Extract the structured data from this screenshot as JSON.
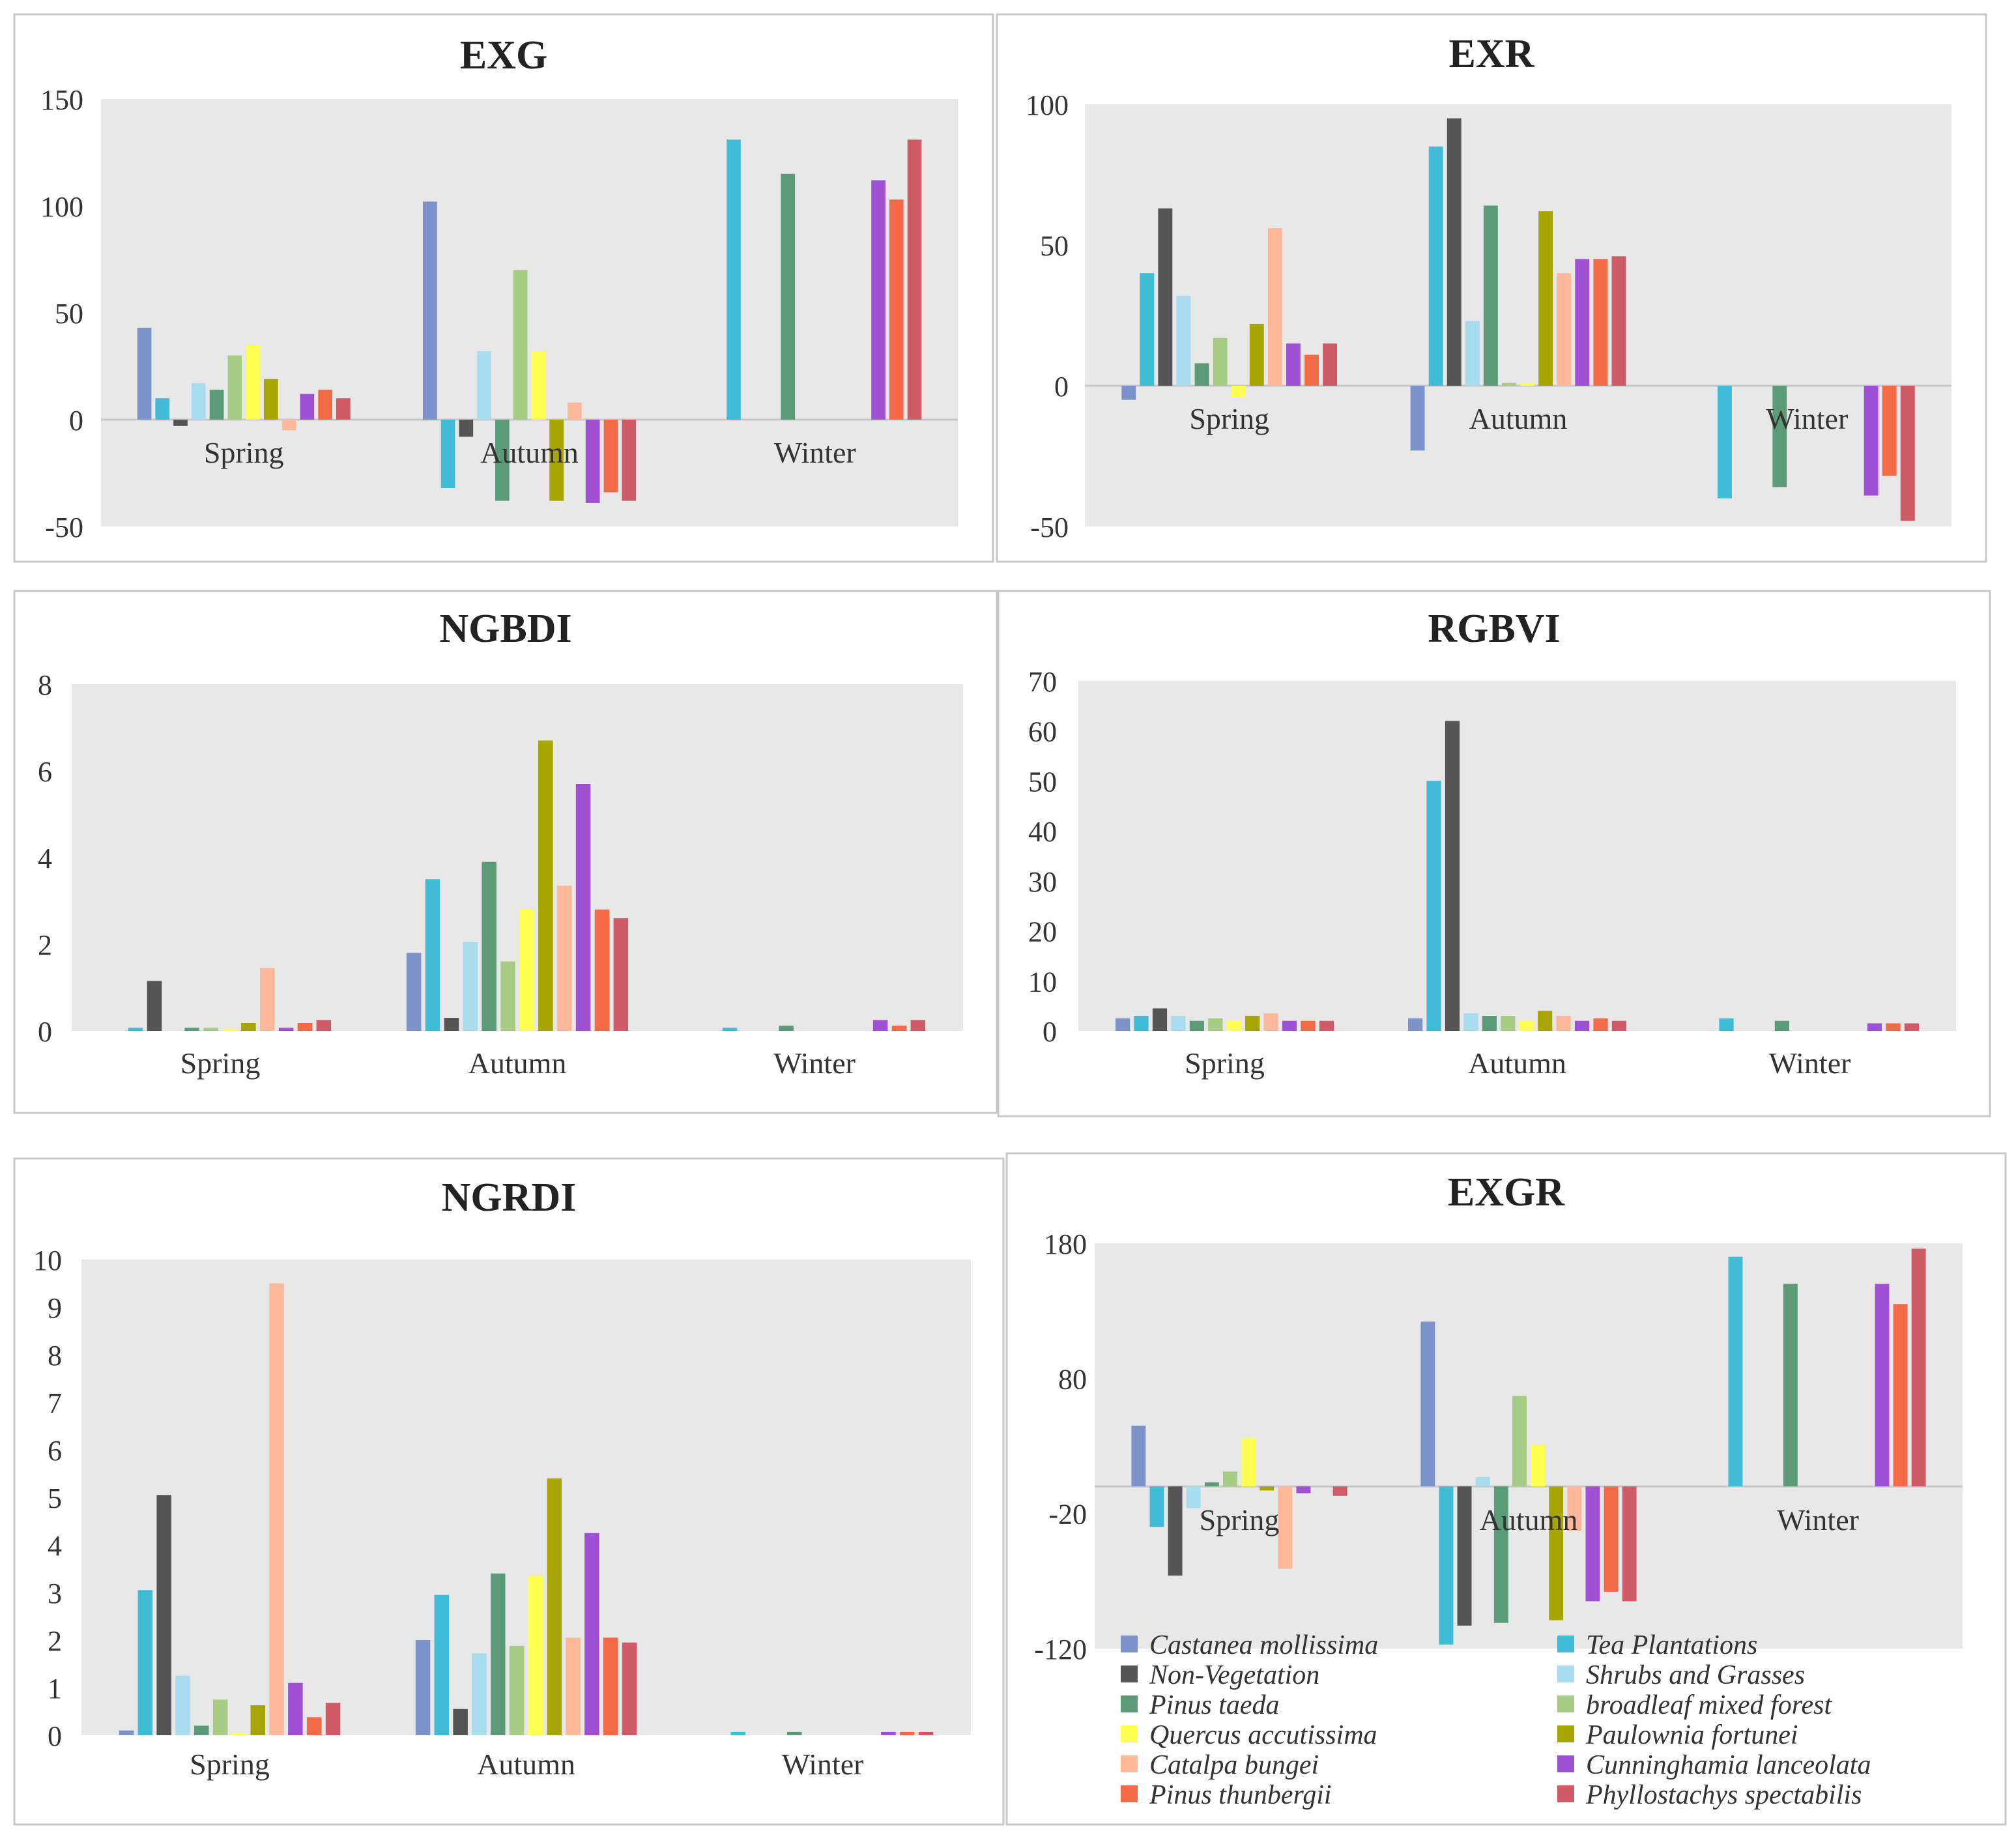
{
  "colors": {
    "plot_background": "#e8e8e8",
    "panel_border": "#c8c8c8",
    "axis_text": "#333333",
    "series": [
      "#7b93c9",
      "#40bcd6",
      "#555555",
      "#a8dcee",
      "#5b9b78",
      "#a5cc82",
      "#ffff52",
      "#a8a400",
      "#ffb99a",
      "#a050d2",
      "#f46a46",
      "#cf5b67"
    ]
  },
  "legend": {
    "labels": [
      "Castanea mollissima",
      "Tea Plantations",
      "Non-Vegetation",
      "Shrubs and Grasses",
      "Pinus taeda",
      "broadleaf mixed forest",
      "Quercus accutissima",
      "Paulownia fortunei",
      "Catalpa bungei",
      "Cunninghamia lanceolata",
      "Pinus thunbergii",
      "Phyllostachys spectabilis"
    ]
  },
  "chart_data": [
    {
      "type": "bar",
      "title": "EXG",
      "categories": [
        "Spring",
        "Autumn",
        "Winter"
      ],
      "ylim": [
        -50,
        150
      ],
      "yticks": [
        "150",
        "100",
        "50",
        "0",
        "-50"
      ],
      "series": [
        {
          "name": "Castanea mollissima",
          "values": [
            43,
            102,
            0
          ]
        },
        {
          "name": "Tea Plantations",
          "values": [
            10,
            -32,
            131
          ]
        },
        {
          "name": "Non-Vegetation",
          "values": [
            -3,
            -8,
            0
          ]
        },
        {
          "name": "Shrubs and Grasses",
          "values": [
            17,
            32,
            0
          ]
        },
        {
          "name": "Pinus taeda",
          "values": [
            14,
            -38,
            115
          ]
        },
        {
          "name": "broadleaf mixed forest",
          "values": [
            30,
            70,
            0
          ]
        },
        {
          "name": "Quercus accutissima",
          "values": [
            35,
            32,
            0
          ]
        },
        {
          "name": "Paulownia fortunei",
          "values": [
            19,
            -38,
            0
          ]
        },
        {
          "name": "Catalpa bungei",
          "values": [
            -5,
            8,
            0
          ]
        },
        {
          "name": "Cunninghamia lanceolata",
          "values": [
            12,
            -39,
            112
          ]
        },
        {
          "name": "Pinus thunbergii",
          "values": [
            14,
            -34,
            103
          ]
        },
        {
          "name": "Phyllostachys spectabilis",
          "values": [
            10,
            -38,
            131
          ]
        }
      ]
    },
    {
      "type": "bar",
      "title": "EXR",
      "categories": [
        "Spring",
        "Autumn",
        "Winter"
      ],
      "ylim": [
        -50,
        100
      ],
      "yticks": [
        "100",
        "50",
        "0",
        "-50"
      ],
      "series": [
        {
          "name": "Castanea mollissima",
          "values": [
            -5,
            -23,
            0
          ]
        },
        {
          "name": "Tea Plantations",
          "values": [
            40,
            85,
            -40
          ]
        },
        {
          "name": "Non-Vegetation",
          "values": [
            63,
            95,
            0
          ]
        },
        {
          "name": "Shrubs and Grasses",
          "values": [
            32,
            23,
            0
          ]
        },
        {
          "name": "Pinus taeda",
          "values": [
            8,
            64,
            -36
          ]
        },
        {
          "name": "broadleaf mixed forest",
          "values": [
            17,
            1,
            0
          ]
        },
        {
          "name": "Quercus accutissima",
          "values": [
            -4,
            1,
            0
          ]
        },
        {
          "name": "Paulownia fortunei",
          "values": [
            22,
            62,
            0
          ]
        },
        {
          "name": "Catalpa bungei",
          "values": [
            56,
            40,
            0
          ]
        },
        {
          "name": "Cunninghamia lanceolata",
          "values": [
            15,
            45,
            -39
          ]
        },
        {
          "name": "Pinus thunbergii",
          "values": [
            11,
            45,
            -32
          ]
        },
        {
          "name": "Phyllostachys spectabilis",
          "values": [
            15,
            46,
            -48
          ]
        }
      ]
    },
    {
      "type": "bar",
      "title": "NGBDI",
      "categories": [
        "Spring",
        "Autumn",
        "Winter"
      ],
      "ylim": [
        0,
        8
      ],
      "yticks": [
        "8",
        "6",
        "4",
        "2",
        "0"
      ],
      "series": [
        {
          "name": "Castanea mollissima",
          "values": [
            0,
            1.8,
            0
          ]
        },
        {
          "name": "Tea Plantations",
          "values": [
            0.07,
            3.5,
            0.07
          ]
        },
        {
          "name": "Non-Vegetation",
          "values": [
            1.15,
            0.3,
            0
          ]
        },
        {
          "name": "Shrubs and Grasses",
          "values": [
            0,
            2.05,
            0
          ]
        },
        {
          "name": "Pinus taeda",
          "values": [
            0.07,
            3.9,
            0.12
          ]
        },
        {
          "name": "broadleaf mixed forest",
          "values": [
            0.07,
            1.6,
            0
          ]
        },
        {
          "name": "Quercus accutissima",
          "values": [
            0.05,
            2.8,
            0
          ]
        },
        {
          "name": "Paulownia fortunei",
          "values": [
            0.18,
            6.7,
            0
          ]
        },
        {
          "name": "Catalpa bungei",
          "values": [
            1.45,
            3.35,
            0
          ]
        },
        {
          "name": "Cunninghamia lanceolata",
          "values": [
            0.07,
            5.7,
            0.25
          ]
        },
        {
          "name": "Pinus thunbergii",
          "values": [
            0.18,
            2.8,
            0.12
          ]
        },
        {
          "name": "Phyllostachys spectabilis",
          "values": [
            0.25,
            2.6,
            0.25
          ]
        }
      ]
    },
    {
      "type": "bar",
      "title": "RGBVI",
      "categories": [
        "Spring",
        "Autumn",
        "Winter"
      ],
      "ylim": [
        0,
        70
      ],
      "yticks": [
        "70",
        "60",
        "50",
        "40",
        "30",
        "20",
        "10",
        "0"
      ],
      "series": [
        {
          "name": "Castanea mollissima",
          "values": [
            2.5,
            2.5,
            0
          ]
        },
        {
          "name": "Tea Plantations",
          "values": [
            3,
            50,
            2.5
          ]
        },
        {
          "name": "Non-Vegetation",
          "values": [
            4.5,
            62,
            0
          ]
        },
        {
          "name": "Shrubs and Grasses",
          "values": [
            3,
            3.5,
            0
          ]
        },
        {
          "name": "Pinus taeda",
          "values": [
            2,
            3,
            2
          ]
        },
        {
          "name": "broadleaf mixed forest",
          "values": [
            2.5,
            3,
            0
          ]
        },
        {
          "name": "Quercus accutissima",
          "values": [
            2,
            2,
            0
          ]
        },
        {
          "name": "Paulownia fortunei",
          "values": [
            3,
            4,
            0
          ]
        },
        {
          "name": "Catalpa bungei",
          "values": [
            3.5,
            3,
            0
          ]
        },
        {
          "name": "Cunninghamia lanceolata",
          "values": [
            2,
            2,
            1.5
          ]
        },
        {
          "name": "Pinus thunbergii",
          "values": [
            2,
            2.5,
            1.5
          ]
        },
        {
          "name": "Phyllostachys spectabilis",
          "values": [
            2,
            2,
            1.5
          ]
        }
      ]
    },
    {
      "type": "bar",
      "title": "NGRDI",
      "categories": [
        "Spring",
        "Autumn",
        "Winter"
      ],
      "ylim": [
        0,
        10
      ],
      "yticks": [
        "10",
        "9",
        "8",
        "7",
        "6",
        "5",
        "4",
        "3",
        "2",
        "1",
        "0"
      ],
      "series": [
        {
          "name": "Castanea mollissima",
          "values": [
            0.1,
            2,
            0
          ]
        },
        {
          "name": "Tea Plantations",
          "values": [
            3.05,
            2.95,
            0.07
          ]
        },
        {
          "name": "Non-Vegetation",
          "values": [
            5.05,
            0.55,
            0
          ]
        },
        {
          "name": "Shrubs and Grasses",
          "values": [
            1.25,
            1.72,
            0
          ]
        },
        {
          "name": "Pinus taeda",
          "values": [
            0.2,
            3.4,
            0.07
          ]
        },
        {
          "name": "broadleaf mixed forest",
          "values": [
            0.75,
            1.88,
            0
          ]
        },
        {
          "name": "Quercus accutissima",
          "values": [
            0.05,
            3.35,
            0
          ]
        },
        {
          "name": "Paulownia fortunei",
          "values": [
            0.63,
            5.4,
            0
          ]
        },
        {
          "name": "Catalpa bungei",
          "values": [
            9.5,
            2.05,
            0
          ]
        },
        {
          "name": "Cunninghamia lanceolata",
          "values": [
            1.1,
            4.25,
            0.07
          ]
        },
        {
          "name": "Pinus thunbergii",
          "values": [
            0.38,
            2.05,
            0.07
          ]
        },
        {
          "name": "Phyllostachys spectabilis",
          "values": [
            0.68,
            1.95,
            0.07
          ]
        }
      ]
    },
    {
      "type": "bar",
      "title": "EXGR",
      "categories": [
        "Spring",
        "Autumn",
        "Winter"
      ],
      "ylim": [
        -120,
        180
      ],
      "yticks": [
        "180",
        "80",
        "-20",
        "-120"
      ],
      "series": [
        {
          "name": "Castanea mollissima",
          "values": [
            45,
            122,
            0
          ]
        },
        {
          "name": "Tea Plantations",
          "values": [
            -30,
            -117,
            170
          ]
        },
        {
          "name": "Non-Vegetation",
          "values": [
            -66,
            -103,
            0
          ]
        },
        {
          "name": "Shrubs and Grasses",
          "values": [
            -16,
            7,
            0
          ]
        },
        {
          "name": "Pinus taeda",
          "values": [
            3,
            -101,
            150
          ]
        },
        {
          "name": "broadleaf mixed forest",
          "values": [
            11,
            67,
            0
          ]
        },
        {
          "name": "Quercus accutissima",
          "values": [
            36,
            31,
            0
          ]
        },
        {
          "name": "Paulownia fortunei",
          "values": [
            -3,
            -99,
            0
          ]
        },
        {
          "name": "Catalpa bungei",
          "values": [
            -61,
            -33,
            0
          ]
        },
        {
          "name": "Cunninghamia lanceolata",
          "values": [
            -5,
            -85,
            150
          ]
        },
        {
          "name": "Pinus thunbergii",
          "values": [
            0,
            -78,
            135
          ]
        },
        {
          "name": "Phyllostachys spectabilis",
          "values": [
            -7,
            -85,
            176
          ]
        }
      ]
    }
  ]
}
